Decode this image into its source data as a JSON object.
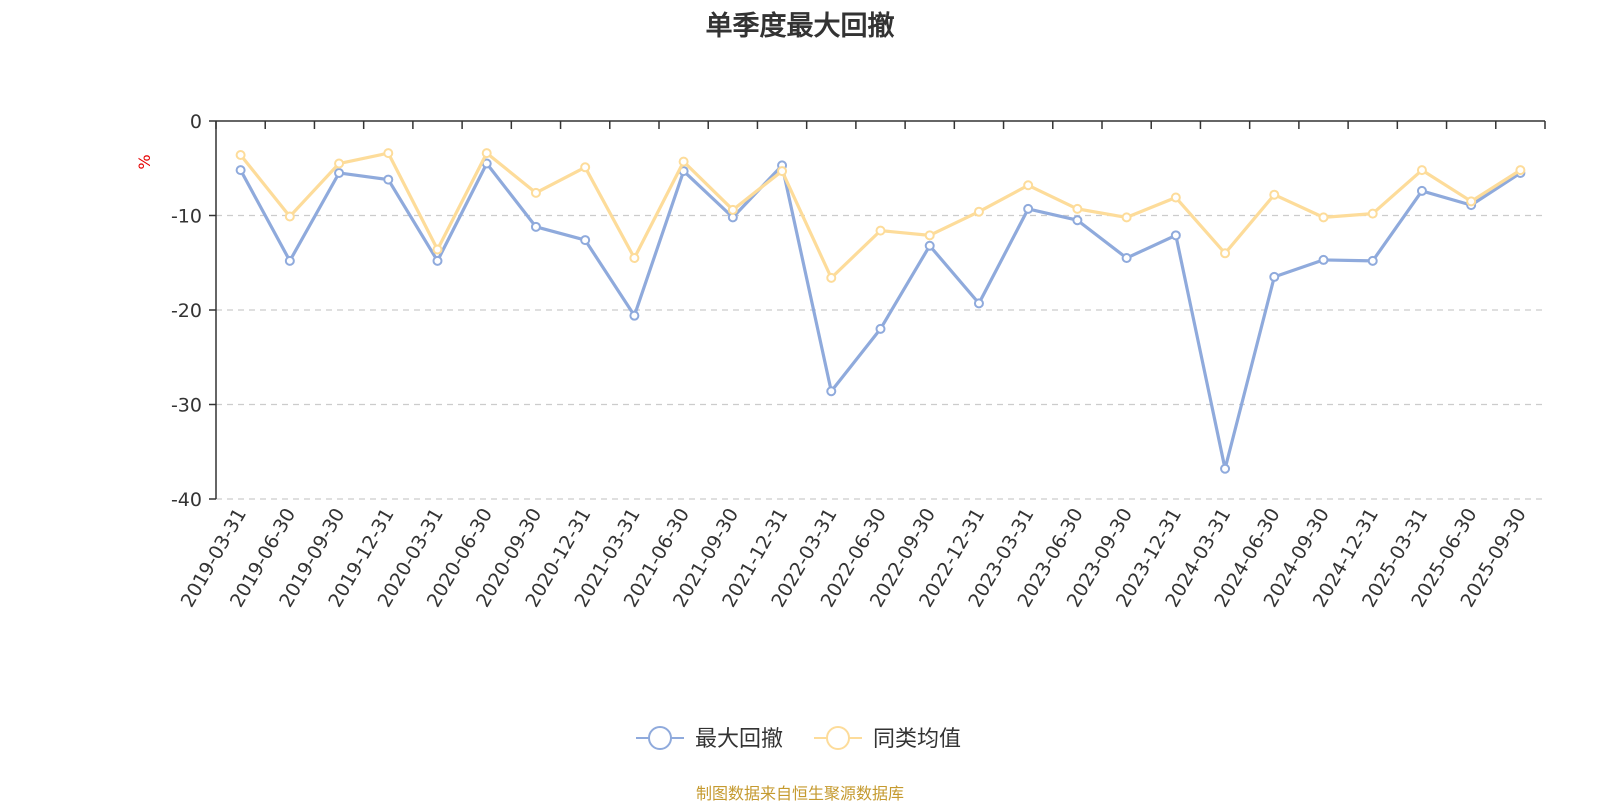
{
  "chart_data": {
    "type": "line",
    "title": "单季度最大回撤",
    "ylabel": "%",
    "ylim": [
      -40,
      0
    ],
    "yticks": [
      0,
      -10,
      -20,
      -30,
      -40
    ],
    "grid": "y-dashed",
    "legend_position": "bottom",
    "categories": [
      "2019-03-31",
      "2019-06-30",
      "2019-09-30",
      "2019-12-31",
      "2020-03-31",
      "2020-06-30",
      "2020-09-30",
      "2020-12-31",
      "2021-03-31",
      "2021-06-30",
      "2021-09-30",
      "2021-12-31",
      "2022-03-31",
      "2022-06-30",
      "2022-09-30",
      "2022-12-31",
      "2023-03-31",
      "2023-06-30",
      "2023-09-30",
      "2023-12-31",
      "2024-03-31",
      "2024-06-30",
      "2024-09-30",
      "2024-12-31",
      "2025-03-31",
      "2025-06-30",
      "2025-09-30"
    ],
    "series": [
      {
        "name": "最大回撤",
        "color": "#8faadc",
        "values": [
          -5.2,
          -14.8,
          -5.5,
          -6.2,
          -14.8,
          -4.5,
          -11.2,
          -12.6,
          -20.6,
          -5.3,
          -10.2,
          -4.7,
          -28.6,
          -22.0,
          -13.2,
          -19.3,
          -9.3,
          -10.5,
          -14.5,
          -12.1,
          -36.8,
          -16.5,
          -14.7,
          -14.8,
          -7.4,
          -8.9,
          -5.5
        ]
      },
      {
        "name": "同类均值",
        "color": "#fddc9a",
        "values": [
          -3.6,
          -10.1,
          -4.5,
          -3.4,
          -13.6,
          -3.4,
          -7.6,
          -4.9,
          -14.5,
          -4.3,
          -9.4,
          -5.3,
          -16.6,
          -11.6,
          -12.1,
          -9.6,
          -6.8,
          -9.3,
          -10.2,
          -8.1,
          -14.0,
          -7.8,
          -10.2,
          -9.8,
          -5.2,
          -8.5,
          -5.2
        ]
      }
    ]
  },
  "footer": {
    "source": "制图数据来自恒生聚源数据库"
  }
}
